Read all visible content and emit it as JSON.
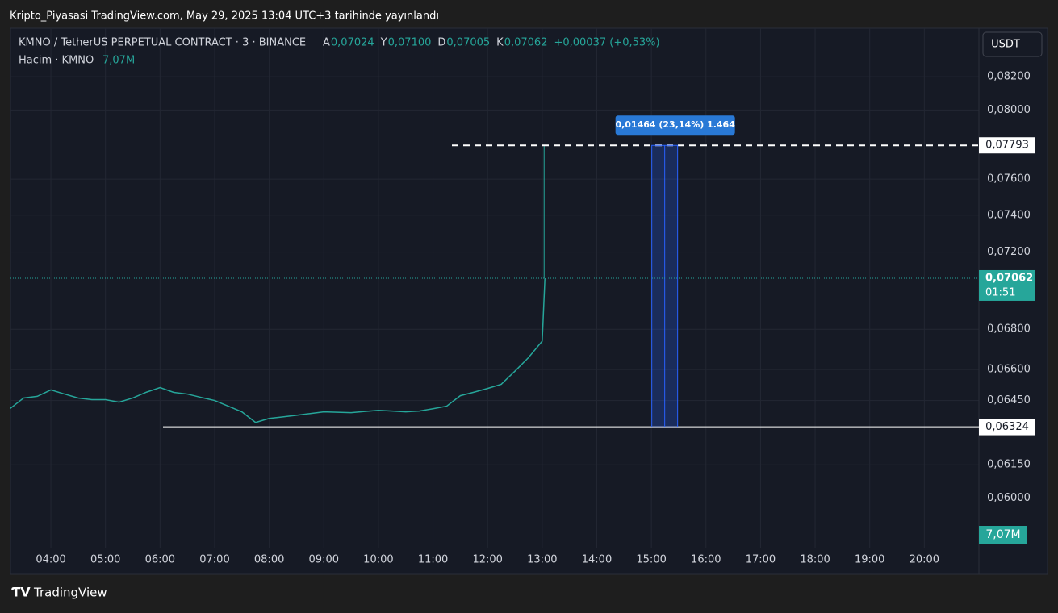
{
  "header": {
    "title": "Kripto_Piyasasi TradingView.com, May 29, 2025 13:04 UTC+3 tarihinde yayınlandı"
  },
  "legend": {
    "symbol": "KMNO / TetherUS PERPETUAL CONTRACT · 3 · BINANCE",
    "open_key": "A",
    "open": "0,07024",
    "high_key": "Y",
    "high": "0,07100",
    "low_key": "D",
    "low": "0,07005",
    "close_key": "K",
    "close": "0,07062",
    "change": "+0,00037 (+0,53%)",
    "volume_name": "Hacim · KMNO",
    "volume": "7,07M"
  },
  "currency_button": "USDT",
  "footer": {
    "brand": "TradingView"
  },
  "chart_data": {
    "type": "line",
    "log_scale": true,
    "grid": true,
    "x": [
      3.25,
      3.5,
      3.75,
      4,
      4.25,
      4.5,
      4.75,
      5,
      5.25,
      5.5,
      5.75,
      6,
      6.25,
      6.5,
      6.75,
      7,
      7.25,
      7.5,
      7.75,
      8,
      8.25,
      8.5,
      8.75,
      9,
      9.25,
      9.5,
      9.75,
      10,
      10.25,
      10.5,
      10.75,
      11,
      11.25,
      11.5,
      11.75,
      12,
      12.25,
      12.5,
      12.75,
      13,
      13.05
    ],
    "series": [
      {
        "name": "KMNO",
        "color": "#26a69a",
        "values": [
          0.06411,
          0.06462,
          0.0647,
          0.06501,
          0.06481,
          0.06462,
          0.06454,
          0.06454,
          0.06442,
          0.06462,
          0.0649,
          0.06512,
          0.06489,
          0.06481,
          0.06465,
          0.0645,
          0.06423,
          0.06396,
          0.06346,
          0.06365,
          0.06372,
          0.0638,
          0.06388,
          0.06396,
          0.06394,
          0.06392,
          0.06398,
          0.06403,
          0.064,
          0.06396,
          0.064,
          0.06411,
          0.06423,
          0.06473,
          0.0649,
          0.06508,
          0.06528,
          0.06592,
          0.06659,
          0.0674,
          0.07062
        ]
      }
    ],
    "xlim": [
      3.26,
      21
    ],
    "xticks": [
      {
        "value": 4,
        "label": "04:00"
      },
      {
        "value": 5,
        "label": "05:00"
      },
      {
        "value": 6,
        "label": "06:00"
      },
      {
        "value": 7,
        "label": "07:00"
      },
      {
        "value": 8,
        "label": "08:00"
      },
      {
        "value": 9,
        "label": "09:00"
      },
      {
        "value": 10,
        "label": "10:00"
      },
      {
        "value": 11,
        "label": "11:00"
      },
      {
        "value": 12,
        "label": "12:00"
      },
      {
        "value": 13,
        "label": "13:00"
      },
      {
        "value": 14,
        "label": "14:00"
      },
      {
        "value": 15,
        "label": "15:00"
      },
      {
        "value": 16,
        "label": "16:00"
      },
      {
        "value": 17,
        "label": "17:00"
      },
      {
        "value": 18,
        "label": "18:00"
      },
      {
        "value": 19,
        "label": "19:00"
      },
      {
        "value": 20,
        "label": "20:00"
      }
    ],
    "ylim": [
      0.0578,
      0.085
    ],
    "yticks": [
      {
        "value": 0.082,
        "label": "0,08200"
      },
      {
        "value": 0.08,
        "label": "0,08000"
      },
      {
        "value": 0.076,
        "label": "0,07600"
      },
      {
        "value": 0.074,
        "label": "0,07400"
      },
      {
        "value": 0.072,
        "label": "0,07200"
      },
      {
        "value": 0.068,
        "label": "0,06800"
      },
      {
        "value": 0.066,
        "label": "0,06600"
      },
      {
        "value": 0.0645,
        "label": "0,06450"
      },
      {
        "value": 0.0615,
        "label": "0,06150"
      },
      {
        "value": 0.06,
        "label": "0,06000"
      }
    ],
    "high_line": {
      "value": 0.07793,
      "label": "0,07793"
    },
    "low_line": {
      "value": 0.06324,
      "label": "0,06324"
    },
    "current_price": {
      "value": 0.07062,
      "label": "0,07062",
      "countdown": "01:51"
    },
    "measure": {
      "text": "0,01464 (23,14%) 1.464",
      "x": 15.2
    }
  }
}
